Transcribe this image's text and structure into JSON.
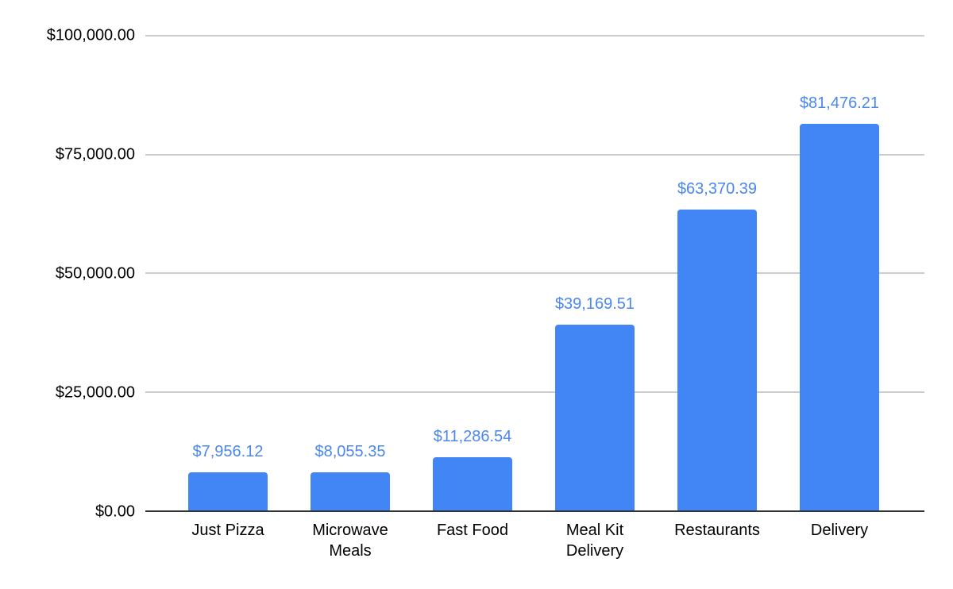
{
  "chart_data": {
    "type": "bar",
    "title": "",
    "xlabel": "",
    "ylabel": "",
    "categories": [
      "Just Pizza",
      "Microwave Meals",
      "Fast Food",
      "Meal Kit Delivery",
      "Restaurants",
      "Delivery"
    ],
    "values": [
      7956.12,
      8055.35,
      11286.54,
      39169.51,
      63370.39,
      81476.21
    ],
    "value_labels": [
      "$7,956.12",
      "$8,055.35",
      "$11,286.54",
      "$39,169.51",
      "$63,370.39",
      "$81,476.21"
    ],
    "y_ticks": [
      {
        "label": "$100,000.00",
        "value": 100000
      },
      {
        "label": "$75,000.00",
        "value": 75000
      },
      {
        "label": "$50,000.00",
        "value": 50000
      },
      {
        "label": "$25,000.00",
        "value": 25000
      },
      {
        "label": "$0.00",
        "value": 0
      }
    ],
    "ylim": [
      0,
      100000
    ],
    "grid": true,
    "legend": "none",
    "colors": {
      "bar": "#4285f4",
      "value_label": "#4b87ef",
      "axis_text": "#000000",
      "gridline": "#cccccc",
      "axis_line": "#333333",
      "background": "#ffffff"
    }
  }
}
